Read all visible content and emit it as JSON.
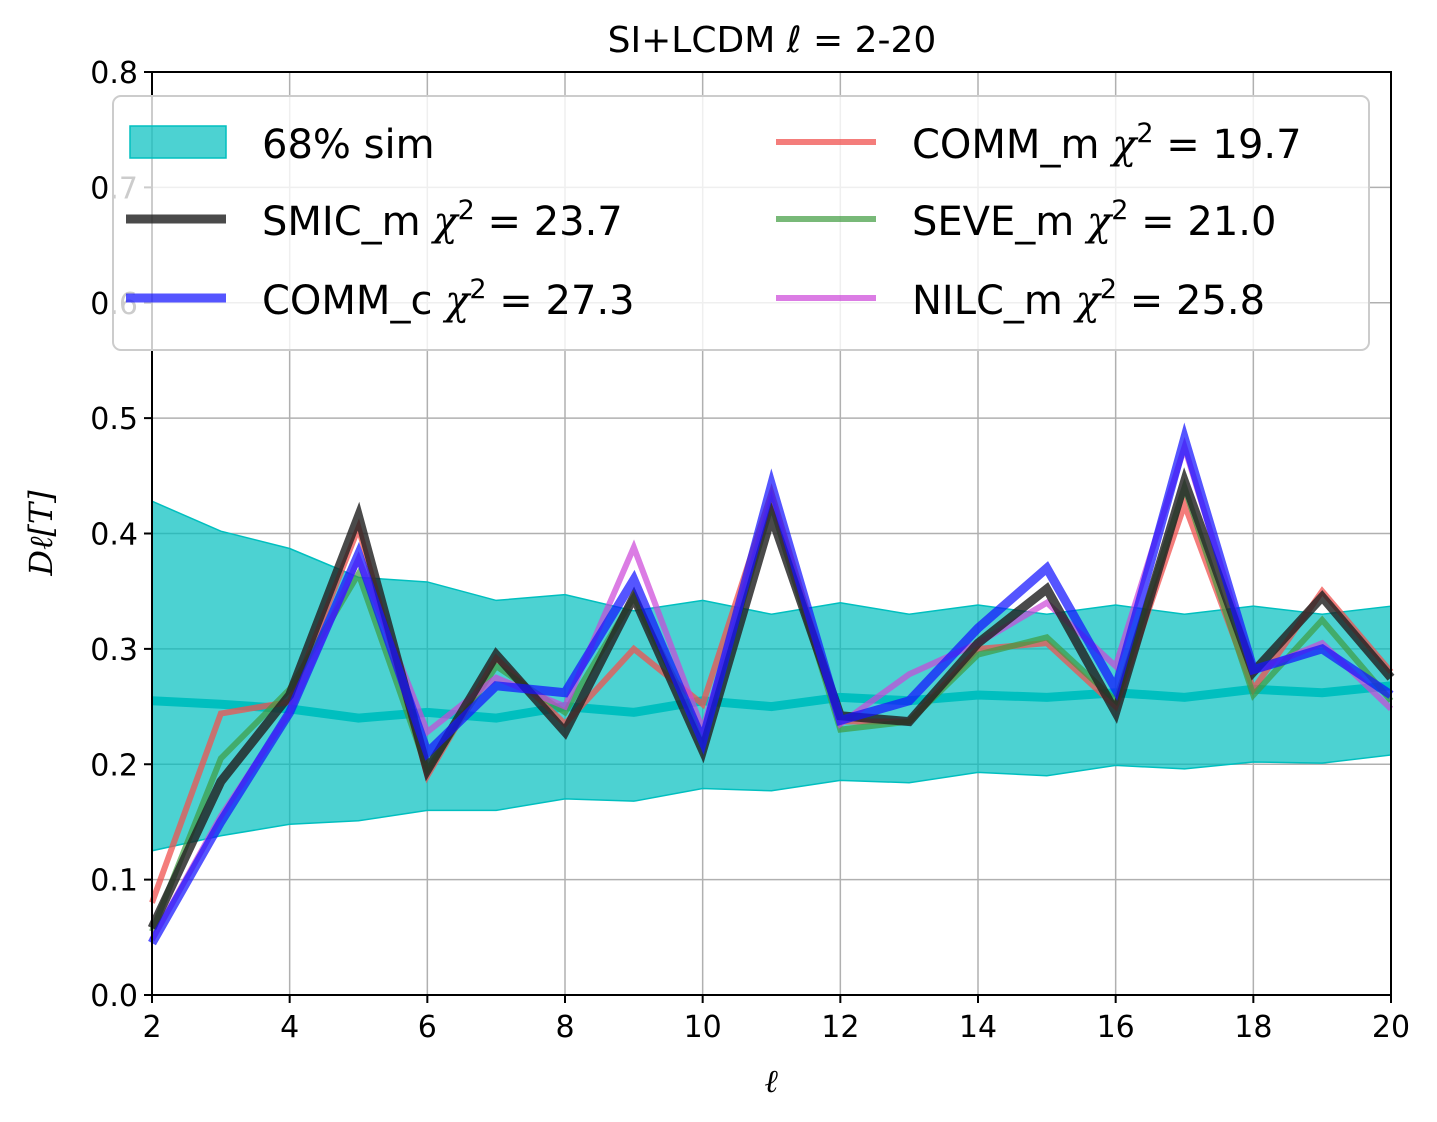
{
  "chart_data": {
    "type": "line",
    "title": "SI+LCDM  ℓ = 2-20",
    "xlabel": "ℓ",
    "ylabel": "Dℓ[T]",
    "xlim": [
      2,
      20
    ],
    "ylim": [
      0,
      0.8
    ],
    "xticks": [
      "2",
      "4",
      "6",
      "8",
      "10",
      "12",
      "14",
      "16",
      "18",
      "20"
    ],
    "yticks": [
      "0.0",
      "0.1",
      "0.2",
      "0.3",
      "0.4",
      "0.5",
      "0.6",
      "0.7",
      "0.8"
    ],
    "grid": true,
    "legend_position": "top",
    "x": [
      2,
      3,
      4,
      5,
      6,
      7,
      8,
      9,
      10,
      11,
      12,
      13,
      14,
      15,
      16,
      17,
      18,
      19,
      20
    ],
    "band": {
      "name": "68% sim",
      "label": "68% sim",
      "color": "#00bfbf",
      "mean": [
        0.255,
        0.252,
        0.248,
        0.24,
        0.245,
        0.24,
        0.25,
        0.245,
        0.255,
        0.25,
        0.258,
        0.255,
        0.26,
        0.258,
        0.262,
        0.258,
        0.265,
        0.262,
        0.268
      ],
      "lower": [
        0.125,
        0.138,
        0.148,
        0.151,
        0.16,
        0.16,
        0.17,
        0.168,
        0.179,
        0.177,
        0.186,
        0.184,
        0.193,
        0.19,
        0.199,
        0.196,
        0.202,
        0.201,
        0.208
      ],
      "upper": [
        0.428,
        0.402,
        0.387,
        0.362,
        0.358,
        0.342,
        0.347,
        0.333,
        0.342,
        0.33,
        0.34,
        0.33,
        0.338,
        0.33,
        0.338,
        0.33,
        0.337,
        0.33,
        0.337
      ]
    },
    "series": [
      {
        "name": "COMM_m",
        "label_name": "COMM_m",
        "chi_label": "χ",
        "chi_sq": "2",
        "chi_value": "= 19.7",
        "color": "#f0524f",
        "opacity": 0.75,
        "width": 6,
        "values": [
          0.08,
          0.244,
          0.254,
          0.405,
          0.19,
          0.292,
          0.235,
          0.3,
          0.252,
          0.435,
          0.237,
          0.237,
          0.3,
          0.305,
          0.25,
          0.425,
          0.265,
          0.35,
          0.28
        ]
      },
      {
        "name": "SEVE_m",
        "label_name": "SEVE_m",
        "chi_label": "χ",
        "chi_sq": "2",
        "chi_value": "= 21.0",
        "color": "#3f9b3f",
        "opacity": 0.7,
        "width": 6,
        "values": [
          0.055,
          0.205,
          0.265,
          0.365,
          0.195,
          0.285,
          0.245,
          0.345,
          0.225,
          0.425,
          0.23,
          0.237,
          0.295,
          0.31,
          0.255,
          0.44,
          0.26,
          0.325,
          0.255
        ]
      },
      {
        "name": "NILC_m",
        "label_name": "NILC_m",
        "chi_label": "χ",
        "chi_sq": "2",
        "chi_value": "= 25.8",
        "color": "#cc44d8",
        "opacity": 0.7,
        "width": 6,
        "values": [
          0.048,
          0.155,
          0.245,
          0.378,
          0.228,
          0.275,
          0.25,
          0.388,
          0.23,
          0.43,
          0.235,
          0.278,
          0.305,
          0.34,
          0.285,
          0.475,
          0.28,
          0.305,
          0.248
        ]
      },
      {
        "name": "SMIC_m",
        "label_name": "SMIC_m",
        "chi_label": "χ",
        "chi_sq": "2",
        "chi_value": "= 23.7",
        "color": "#222222",
        "opacity": 0.82,
        "width": 9,
        "values": [
          0.058,
          0.185,
          0.26,
          0.415,
          0.195,
          0.295,
          0.228,
          0.345,
          0.212,
          0.415,
          0.242,
          0.237,
          0.305,
          0.352,
          0.245,
          0.445,
          0.28,
          0.345,
          0.275
        ]
      },
      {
        "name": "COMM_c",
        "label_name": "COMM_c",
        "chi_label": "χ",
        "chi_sq": "2",
        "chi_value": "= 27.3",
        "color": "#1414ff",
        "opacity": 0.72,
        "width": 9,
        "values": [
          0.045,
          0.15,
          0.245,
          0.382,
          0.21,
          0.268,
          0.262,
          0.36,
          0.22,
          0.442,
          0.238,
          0.255,
          0.318,
          0.37,
          0.265,
          0.482,
          0.282,
          0.3,
          0.26
        ]
      }
    ]
  }
}
